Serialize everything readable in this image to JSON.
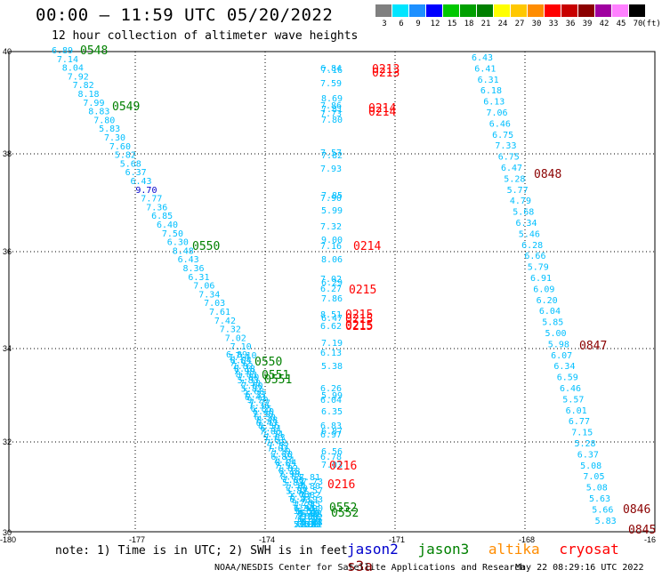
{
  "header": {
    "title": "00:00 – 11:59 UTC 05/20/2022",
    "subtitle": "12 hour collection of altimeter wave heights"
  },
  "colorbar": {
    "unit": "(ft)",
    "colors": [
      "#808080",
      "#00e5ff",
      "#1e90ff",
      "#0000ff",
      "#00c800",
      "#00a000",
      "#008000",
      "#ffff00",
      "#ffc800",
      "#ff8c00",
      "#ff0000",
      "#c80000",
      "#8b0000",
      "#a000a0",
      "#ff80ff",
      "#000000"
    ],
    "labels": [
      "3",
      "6",
      "9",
      "12",
      "15",
      "18",
      "21",
      "24",
      "27",
      "30",
      "33",
      "36",
      "39",
      "42",
      "45",
      "70"
    ]
  },
  "map": {
    "lon_ticks": [
      "-180",
      "-177",
      "-174",
      "-171",
      "-168",
      "-16"
    ],
    "lat_ticks": [
      "40",
      "38",
      "36",
      "34",
      "32",
      "30"
    ]
  },
  "satellite_colors": {
    "jason2": "#0000cd",
    "jason3": "#008000",
    "altika": "#ff8c00",
    "cryosat": "#ff0000",
    "s3a": "#8b0000",
    "track": "#00bfff"
  },
  "track_labels": {
    "track1": [
      "6.89",
      "7.14",
      "8.04",
      "7.92",
      "7.82",
      "8.18",
      "7.99",
      "8.83",
      "7.80",
      "5.83",
      "7.30",
      "7.60",
      "5.82",
      "5.68",
      "6.37",
      "6.43",
      "9.70",
      "7.77",
      "7.36",
      "6.85",
      "6.40",
      "7.50",
      "6.30",
      "8.48",
      "6.43",
      "8.36",
      "6.31",
      "7.06",
      "7.34",
      "7.03",
      "7.61",
      "7.42",
      "7.32",
      "7.02",
      "7.10",
      "7.10"
    ],
    "track1_tail": [
      "6.93",
      "6.56",
      "6.78",
      "7.03",
      "6.69",
      "5.87",
      "5.67",
      "6.02",
      "6.41",
      "7.52",
      "7.80",
      "7.92",
      "7.71"
    ],
    "track2": [
      "6.84",
      "7.16",
      "7.59",
      "8.69",
      "7.86",
      "7.81",
      "7.73",
      "7.80",
      "7.57",
      "7.82",
      "7.93",
      "7.85",
      "7.90",
      "5.99",
      "7.32",
      "9.00",
      "7.16",
      "8.06",
      "7.02",
      "6.29",
      "6.27",
      "7.86",
      "8.51",
      "6.47",
      "6.62",
      "7.19",
      "6.13",
      "5.38",
      "6.26",
      "5.99",
      "6.04",
      "6.35",
      "6.83",
      "6.87",
      "6.97",
      "6.56",
      "6.78",
      "7.03"
    ],
    "track3": [
      "6.43",
      "6.41",
      "6.31",
      "6.18",
      "6.13",
      "7.06",
      "6.46",
      "6.75",
      "7.33",
      "6.75",
      "6.47",
      "5.28",
      "5.77",
      "4.79",
      "5.68",
      "6.34",
      "5.46",
      "6.28",
      "6.66",
      "5.79",
      "6.91",
      "6.09",
      "6.20",
      "6.04",
      "5.85",
      "5.00",
      "5.98",
      "6.07",
      "6.34",
      "6.59",
      "6.46",
      "5.57",
      "6.01",
      "6.77",
      "7.15",
      "5.28",
      "6.37",
      "5.08",
      "7.05",
      "5.08",
      "5.63",
      "5.66",
      "5.83"
    ]
  },
  "time_labels": [
    {
      "text": "0548",
      "sat": "jason3"
    },
    {
      "text": "0549",
      "sat": "jason3"
    },
    {
      "text": "0550",
      "sat": "jason3"
    },
    {
      "text": "0550",
      "sat": "jason3"
    },
    {
      "text": "0551",
      "sat": "jason3"
    },
    {
      "text": "0551",
      "sat": "jason3"
    },
    {
      "text": "0552",
      "sat": "jason3"
    },
    {
      "text": "0552",
      "sat": "jason3"
    },
    {
      "text": "0213",
      "sat": "cryosat"
    },
    {
      "text": "0213",
      "sat": "cryosat"
    },
    {
      "text": "0214",
      "sat": "cryosat"
    },
    {
      "text": "0214",
      "sat": "cryosat"
    },
    {
      "text": "0214",
      "sat": "cryosat"
    },
    {
      "text": "0215",
      "sat": "cryosat"
    },
    {
      "text": "0215",
      "sat": "cryosat"
    },
    {
      "text": "0215",
      "sat": "cryosat"
    },
    {
      "text": "0215",
      "sat": "cryosat"
    },
    {
      "text": "0215",
      "sat": "cryosat"
    },
    {
      "text": "0216",
      "sat": "cryosat"
    },
    {
      "text": "0216",
      "sat": "cryosat"
    },
    {
      "text": "0848",
      "sat": "s3a"
    },
    {
      "text": "0847",
      "sat": "s3a"
    },
    {
      "text": "0846",
      "sat": "s3a"
    },
    {
      "text": "0845",
      "sat": "s3a"
    }
  ],
  "footer": {
    "note": "note: 1) Time is in UTC; 2) SWH is in feet",
    "legend": [
      "jason2",
      "jason3",
      "altika",
      "cryosat",
      "s3a"
    ],
    "credit": "NOAA/NESDIS Center for Satellite Applications and Research",
    "timestamp": "May 22 08:29:16 UTC 2022"
  }
}
